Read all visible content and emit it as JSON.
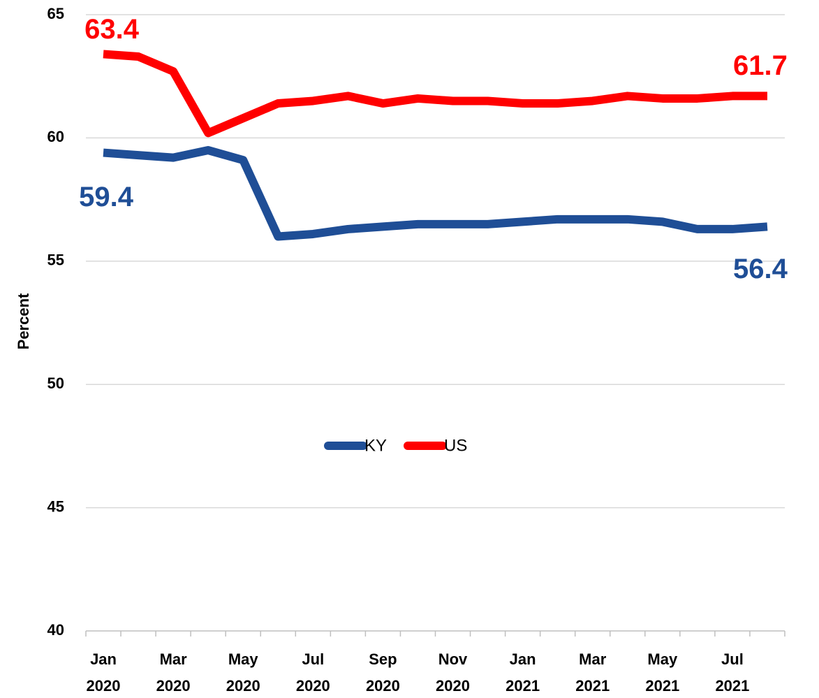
{
  "chart_data": {
    "type": "line",
    "y_label": "Percent",
    "categories": [
      "Jan 2020",
      null,
      "Mar 2020",
      null,
      "May 2020",
      null,
      "Jul 2020",
      null,
      "Sep 2020",
      null,
      "Nov 2020",
      null,
      "Jan 2021",
      null,
      "Mar 2021",
      null,
      "May 2021",
      null,
      "Jul 2021",
      null
    ],
    "series": [
      {
        "name": "KY",
        "color": "#1f4e96",
        "values": [
          59.4,
          59.3,
          59.2,
          59.5,
          59.1,
          56.0,
          56.1,
          56.3,
          56.4,
          56.5,
          56.5,
          56.5,
          56.6,
          56.7,
          56.7,
          56.7,
          56.6,
          56.3,
          56.3,
          56.4
        ]
      },
      {
        "name": "US",
        "color": "#ff0000",
        "values": [
          63.4,
          63.3,
          62.7,
          60.2,
          60.8,
          61.4,
          61.5,
          61.7,
          61.4,
          61.6,
          61.5,
          61.5,
          61.4,
          61.4,
          61.5,
          61.7,
          61.6,
          61.6,
          61.7,
          61.7
        ]
      }
    ],
    "ylim": [
      40,
      65
    ],
    "yticks": [
      40,
      45,
      50,
      55,
      60,
      65
    ],
    "grid": true,
    "legend": "center"
  }
}
